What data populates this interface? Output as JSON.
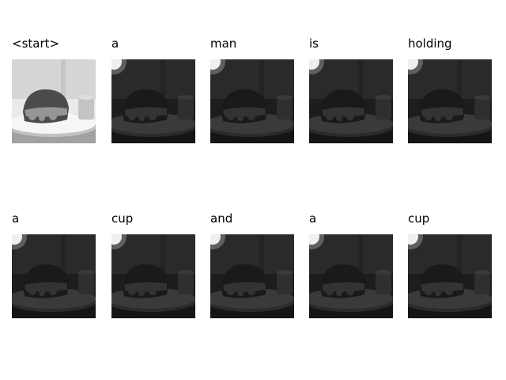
{
  "panels": [
    {
      "word": "<start>",
      "variant": "bright"
    },
    {
      "word": "a",
      "variant": "dim"
    },
    {
      "word": "man",
      "variant": "dim"
    },
    {
      "word": "is",
      "variant": "dim"
    },
    {
      "word": "holding",
      "variant": "dim"
    },
    {
      "word": "a",
      "variant": "dim"
    },
    {
      "word": "cup",
      "variant": "dim"
    },
    {
      "word": "and",
      "variant": "dim"
    },
    {
      "word": "a",
      "variant": "dim"
    },
    {
      "word": "cup",
      "variant": "dim"
    }
  ]
}
